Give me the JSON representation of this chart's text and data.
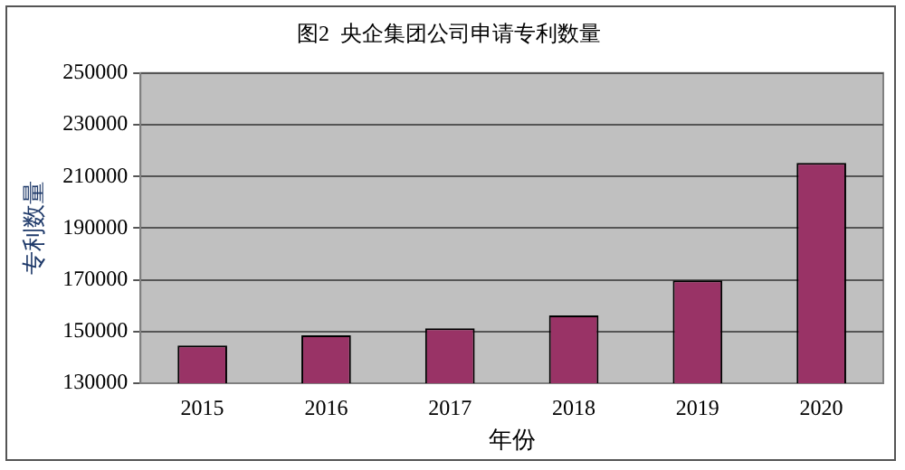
{
  "chart_data": {
    "type": "bar",
    "title": "图2  央企集团公司申请专利数量",
    "xlabel": "年份",
    "ylabel": "专利数量",
    "categories": [
      "2015",
      "2016",
      "2017",
      "2018",
      "2019",
      "2020"
    ],
    "values": [
      144600,
      148500,
      151200,
      156200,
      169800,
      215200
    ],
    "color": "#993366",
    "ylim": [
      130000,
      250000
    ],
    "yticks": [
      130000,
      150000,
      170000,
      190000,
      210000,
      230000,
      250000
    ],
    "grid": "y"
  }
}
